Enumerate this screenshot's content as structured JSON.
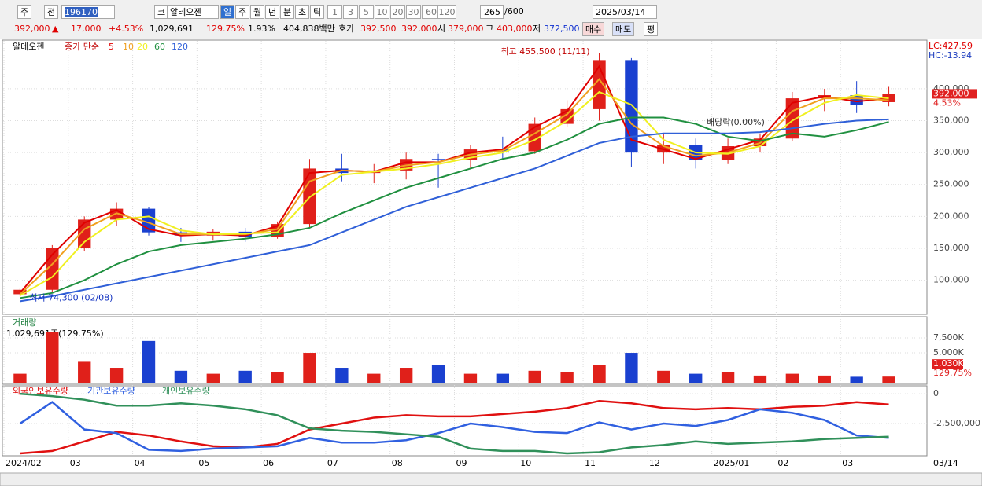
{
  "toolbar": {
    "market": "주",
    "prev": "전",
    "code": "196170",
    "market_type": "코",
    "name": "알테오젠",
    "periods": [
      "일",
      "주",
      "월",
      "년",
      "분",
      "초",
      "틱"
    ],
    "intervals": [
      "1",
      "3",
      "5",
      "10",
      "20",
      "30",
      "60",
      "120"
    ],
    "count": "265",
    "max": "/600",
    "date": "2025/03/14"
  },
  "quote": {
    "price": "392,000",
    "arrow": "▲",
    "change": "17,000",
    "rate": "+4.53%",
    "volume": "1,029,691",
    "volume_ratio": "129.75%",
    "turnover": "1.93%",
    "amount": "404,838백만",
    "ask_label": "호가",
    "ask": "392,500",
    "bid": "392,000",
    "open_label": "시",
    "open": "379,000",
    "high_label": "고",
    "high": "403,000",
    "low_label": "저",
    "low": "372,500",
    "buy": "매수",
    "sell": "매도",
    "avg": "평"
  },
  "chart_data": [
    {
      "type": "candlestick",
      "name_label": "알테오젠",
      "legend_title": "종가 단순",
      "categories": [
        "2024/02",
        null,
        "03",
        null,
        "04",
        null,
        "05",
        null,
        "06",
        null,
        "07",
        null,
        "08",
        null,
        "09",
        null,
        "10",
        null,
        "11",
        null,
        "12",
        null,
        "2025/01",
        null,
        "02",
        null,
        "03",
        null
      ],
      "x_end_label": "03/14",
      "open": [
        78000,
        85000,
        150000,
        195000,
        212000,
        175000,
        170000,
        176000,
        168000,
        188000,
        275000,
        268000,
        272000,
        290000,
        288000,
        305000,
        302000,
        345000,
        368000,
        445000,
        300000,
        312000,
        288000,
        310000,
        322000,
        385000,
        390000,
        379000
      ],
      "high": [
        88000,
        155000,
        200000,
        222000,
        215000,
        182000,
        180000,
        182000,
        192000,
        290000,
        298000,
        282000,
        300000,
        298000,
        312000,
        325000,
        355000,
        382000,
        455500,
        448000,
        330000,
        322000,
        322000,
        330000,
        395000,
        400000,
        412000,
        403000
      ],
      "low": [
        74300,
        82000,
        145000,
        185000,
        170000,
        160000,
        162000,
        160000,
        165000,
        182000,
        255000,
        252000,
        258000,
        245000,
        275000,
        290000,
        298000,
        340000,
        350000,
        278000,
        282000,
        275000,
        282000,
        300000,
        318000,
        365000,
        362000,
        372500
      ],
      "close": [
        85000,
        150000,
        195000,
        212000,
        175000,
        170000,
        176000,
        168000,
        188000,
        275000,
        268000,
        272000,
        290000,
        288000,
        305000,
        302000,
        345000,
        368000,
        445000,
        300000,
        312000,
        288000,
        310000,
        322000,
        385000,
        390000,
        375000,
        392000
      ],
      "up_color": "#e0201a",
      "down_color": "#1a40d0",
      "series": [
        {
          "name": "5",
          "color": "#e00000",
          "values": [
            80000,
            140000,
            190000,
            210000,
            180000,
            170000,
            172000,
            170000,
            185000,
            268000,
            272000,
            270000,
            285000,
            285000,
            300000,
            305000,
            340000,
            365000,
            435000,
            320000,
            305000,
            290000,
            305000,
            320000,
            378000,
            388000,
            380000,
            385000
          ]
        },
        {
          "name": "10",
          "color": "#f0a020",
          "values": [
            78000,
            125000,
            180000,
            205000,
            190000,
            172000,
            172000,
            172000,
            180000,
            255000,
            272000,
            270000,
            280000,
            285000,
            297000,
            303000,
            330000,
            360000,
            415000,
            345000,
            310000,
            295000,
            300000,
            315000,
            365000,
            385000,
            385000,
            382000
          ]
        },
        {
          "name": "20",
          "color": "#f0f020",
          "values": [
            76000,
            105000,
            160000,
            195000,
            200000,
            178000,
            172000,
            173000,
            175000,
            230000,
            265000,
            270000,
            275000,
            282000,
            292000,
            300000,
            320000,
            350000,
            395000,
            375000,
            320000,
            300000,
            298000,
            310000,
            350000,
            378000,
            390000,
            385000
          ]
        },
        {
          "name": "60",
          "color": "#209040",
          "values": [
            72000,
            80000,
            100000,
            125000,
            145000,
            155000,
            160000,
            165000,
            172000,
            182000,
            205000,
            225000,
            245000,
            260000,
            275000,
            290000,
            300000,
            320000,
            345000,
            355000,
            355000,
            345000,
            325000,
            318000,
            330000,
            325000,
            335000,
            348000
          ]
        },
        {
          "name": "120",
          "color": "#3060d8",
          "values": [
            67000,
            75000,
            85000,
            95000,
            105000,
            115000,
            125000,
            135000,
            145000,
            155000,
            175000,
            195000,
            215000,
            230000,
            245000,
            260000,
            275000,
            295000,
            315000,
            325000,
            330000,
            330000,
            330000,
            332000,
            338000,
            345000,
            350000,
            352000
          ]
        }
      ],
      "ylim": [
        49000,
        475000
      ],
      "yticks": [
        {
          "value": 100000,
          "label": "100,000"
        },
        {
          "value": 150000,
          "label": "150,000"
        },
        {
          "value": 200000,
          "label": "200,000"
        },
        {
          "value": 250000,
          "label": "250,000"
        },
        {
          "value": 300000,
          "label": "300,000"
        },
        {
          "value": 350000,
          "label": "350,000"
        },
        {
          "value": 400000,
          "label": "400,000"
        }
      ],
      "grid": true,
      "high_note": "최고 455,500 (11/11)",
      "low_note": "최저 74,300 (02/08)",
      "event_note": "배당락(0.00%)",
      "lc": "LC:427.59",
      "hc": "HC:-13.94",
      "price_tag": "392,000",
      "rate_tag": "4.53%"
    },
    {
      "type": "bar",
      "title": "거래량",
      "subtitle": "1,029,691주(129.75%)",
      "values": [
        1500000,
        8500000,
        3500000,
        2500000,
        7000000,
        2000000,
        1500000,
        2000000,
        1800000,
        5000000,
        2500000,
        1500000,
        2500000,
        3000000,
        1500000,
        1500000,
        2000000,
        1800000,
        3000000,
        5000000,
        2000000,
        1500000,
        1800000,
        1200000,
        1500000,
        1200000,
        1000000,
        1030000
      ],
      "ylim": [
        0,
        10800000
      ],
      "yticks": [
        {
          "value": 5000000,
          "label": "5,000K"
        },
        {
          "value": 7500000,
          "label": "7,500K"
        }
      ],
      "tag": "1,030K",
      "tag2": "129.75%"
    },
    {
      "type": "line",
      "series": [
        {
          "name": "외국인보유수량",
          "color": "#e01010",
          "values": [
            -5000000,
            -4800000,
            -4000000,
            -3200000,
            -3500000,
            -4000000,
            -4400000,
            -4500000,
            -4200000,
            -3000000,
            -2500000,
            -2000000,
            -1800000,
            -1900000,
            -1900000,
            -1700000,
            -1500000,
            -1200000,
            -600000,
            -800000,
            -1200000,
            -1300000,
            -1200000,
            -1300000,
            -1100000,
            -1000000,
            -700000,
            -900000
          ]
        },
        {
          "name": "기관보유수량",
          "color": "#3060e0",
          "values": [
            -2500000,
            -700000,
            -3000000,
            -3300000,
            -4700000,
            -4800000,
            -4600000,
            -4500000,
            -4400000,
            -3700000,
            -4100000,
            -4100000,
            -3900000,
            -3300000,
            -2500000,
            -2800000,
            -3200000,
            -3300000,
            -2400000,
            -3000000,
            -2500000,
            -2700000,
            -2200000,
            -1300000,
            -1600000,
            -2200000,
            -3500000,
            -3700000
          ]
        },
        {
          "name": "개인보유수량",
          "color": "#30905a",
          "values": [
            0,
            -200000,
            -500000,
            -1000000,
            -1000000,
            -800000,
            -1000000,
            -1300000,
            -1800000,
            -2900000,
            -3100000,
            -3200000,
            -3400000,
            -3600000,
            -4600000,
            -4800000,
            -4800000,
            -5000000,
            -4900000,
            -4500000,
            -4300000,
            -4000000,
            -4200000,
            -4100000,
            -4000000,
            -3800000,
            -3700000,
            -3600000
          ]
        }
      ],
      "ylim": [
        -5200000,
        600000
      ],
      "yticks": [
        0,
        {
          "value": -2500000,
          "label": "-2,500,000"
        }
      ]
    }
  ]
}
